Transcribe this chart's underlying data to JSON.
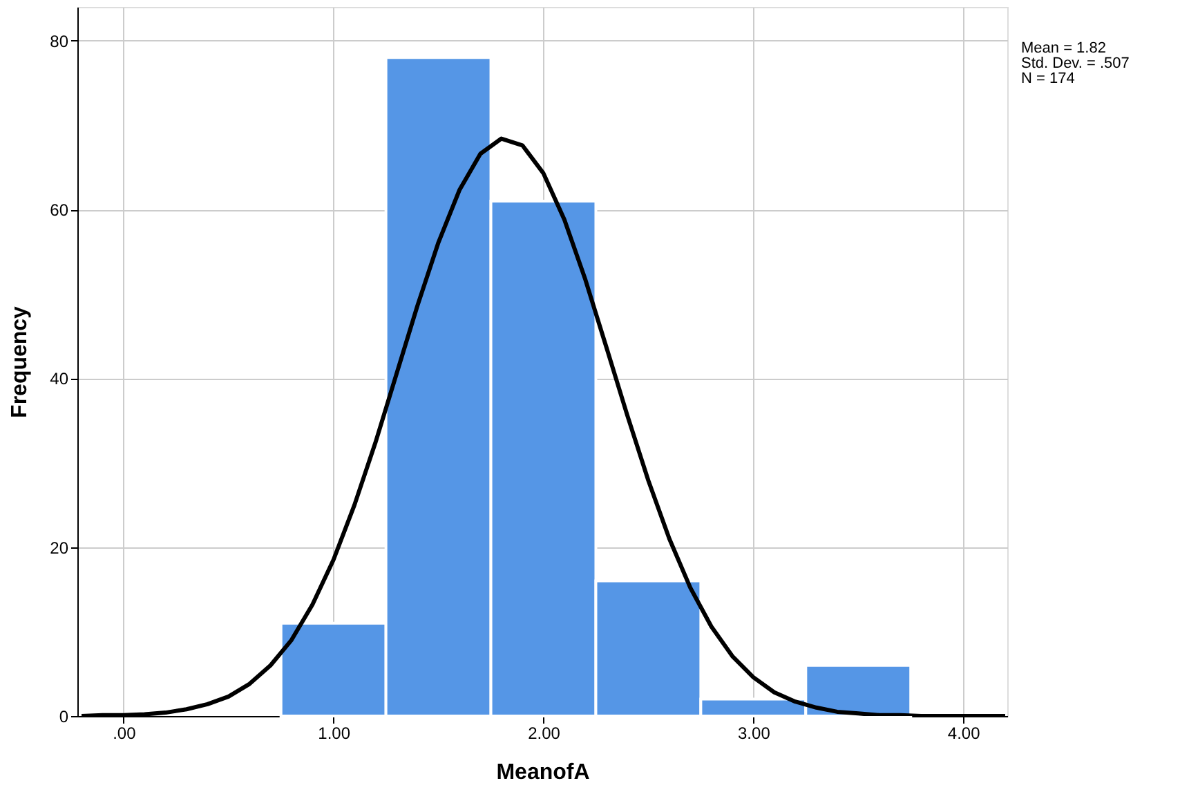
{
  "chart_data": {
    "type": "histogram",
    "xlabel": "MeanofA",
    "ylabel": "Frequency",
    "bins": [
      0.75,
      1.25,
      1.75,
      2.25,
      2.75,
      3.25,
      3.75
    ],
    "values": [
      11,
      78,
      61,
      16,
      2,
      6
    ],
    "color": "#5596e6",
    "series": [
      {
        "type": "line",
        "color": "#000000",
        "x": [
          -0.2,
          -0.1,
          0.0,
          0.1,
          0.2,
          0.3,
          0.4,
          0.5,
          0.6,
          0.7,
          0.8,
          0.9,
          1.0,
          1.1,
          1.2,
          1.3,
          1.4,
          1.5,
          1.6,
          1.7,
          1.8,
          1.9,
          2.0,
          2.1,
          2.2,
          2.3,
          2.4,
          2.5,
          2.6,
          2.7,
          2.8,
          2.9,
          3.0,
          3.1,
          3.2,
          3.3,
          3.4,
          3.5,
          3.6,
          3.7,
          3.8,
          3.9,
          4.0,
          4.1,
          4.2
        ],
        "values": [
          0.0,
          0.1,
          0.1,
          0.2,
          0.4,
          0.8,
          1.4,
          2.3,
          3.8,
          6.0,
          9.0,
          13.2,
          18.5,
          25.0,
          32.4,
          40.5,
          48.6,
          56.1,
          62.3,
          66.6,
          68.4,
          67.6,
          64.3,
          58.8,
          51.7,
          43.7,
          35.6,
          27.9,
          21.0,
          15.2,
          10.6,
          7.1,
          4.6,
          2.8,
          1.7,
          1.0,
          0.5,
          0.3,
          0.1,
          0.1,
          0.0,
          0.0,
          0.0,
          0.0,
          0.0
        ]
      }
    ],
    "xlim": [
      -0.22,
      4.21
    ],
    "ylim": [
      0,
      84
    ],
    "xticks": [
      {
        "value": 0,
        "label": ".00"
      },
      {
        "value": 1,
        "label": "1.00"
      },
      {
        "value": 2,
        "label": "2.00"
      },
      {
        "value": 3,
        "label": "3.00"
      },
      {
        "value": 4,
        "label": "4.00"
      }
    ],
    "yticks": [
      0,
      20,
      40,
      60,
      80
    ],
    "grid": true,
    "annotations": [
      "Mean = 1.82",
      "Std. Dev. = .507",
      "N = 174"
    ]
  }
}
